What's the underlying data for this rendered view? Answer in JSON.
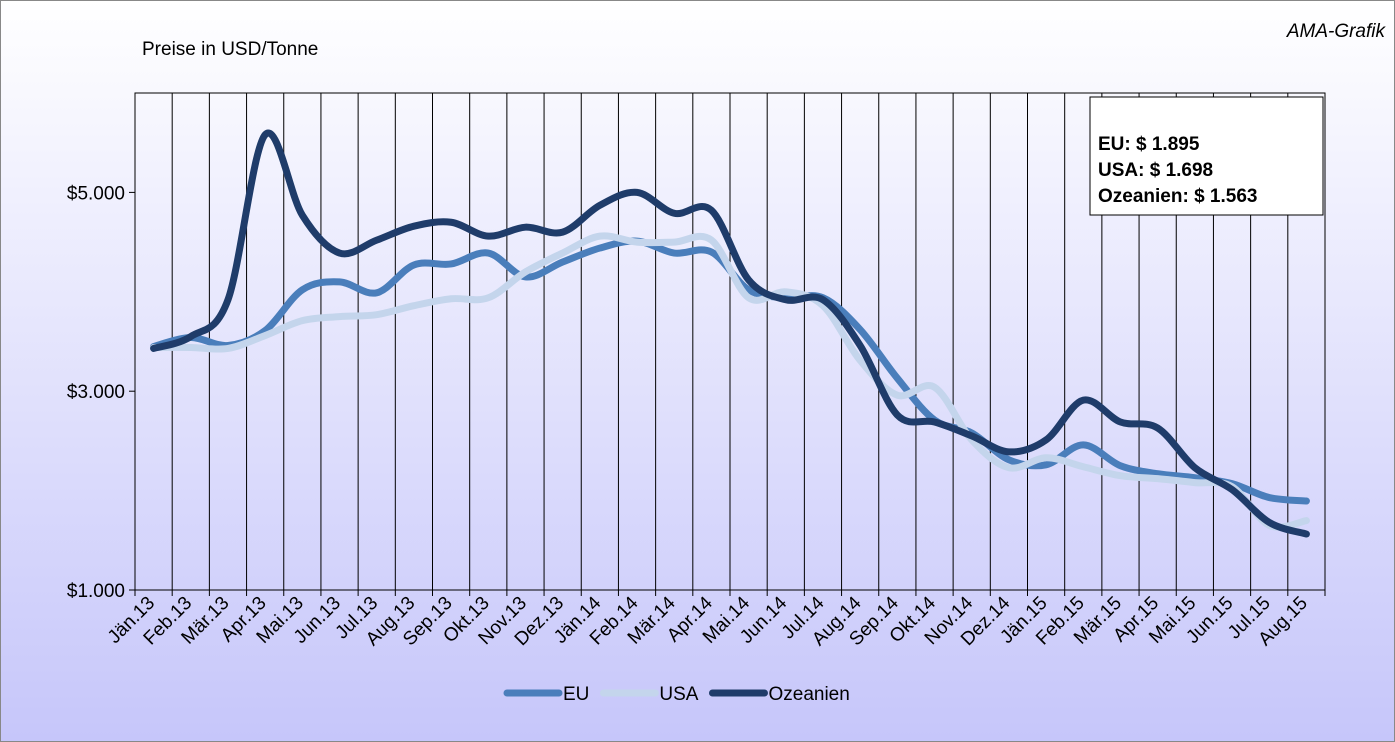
{
  "chart_data": {
    "type": "line",
    "title": "Preise in USD/Tonne",
    "source": "AMA-Grafik",
    "annotations": [
      "EU: $ 1.895",
      "USA: $ 1.698",
      "Ozeanien: $ 1.563"
    ],
    "categories": [
      "Jän.13",
      "Feb.13",
      "Mär.13",
      "Apr.13",
      "Mai.13",
      "Jun.13",
      "Jul.13",
      "Aug.13",
      "Sep.13",
      "Okt.13",
      "Nov.13",
      "Dez.13",
      "Jän.14",
      "Feb.14",
      "Mär.14",
      "Apr.14",
      "Mai.14",
      "Jun.14",
      "Jul.14",
      "Aug.14",
      "Sep.14",
      "Okt.14",
      "Nov.14",
      "Dez.14",
      "Jän.15",
      "Feb.15",
      "Mär.15",
      "Apr.15",
      "Mai.15",
      "Jun.15",
      "Jul.15",
      "Aug.15"
    ],
    "series": [
      {
        "name": "EU",
        "color": "#4a7ebb",
        "values": [
          3450,
          3540,
          3460,
          3610,
          4020,
          4100,
          3990,
          4270,
          4280,
          4390,
          4150,
          4300,
          4440,
          4510,
          4390,
          4400,
          4020,
          3940,
          3940,
          3620,
          3130,
          2710,
          2580,
          2310,
          2260,
          2460,
          2250,
          2170,
          2130,
          2070,
          1930,
          1895
        ]
      },
      {
        "name": "USA",
        "color": "#c4d5ec",
        "values": [
          3440,
          3440,
          3430,
          3560,
          3710,
          3750,
          3770,
          3860,
          3930,
          3940,
          4200,
          4390,
          4560,
          4500,
          4500,
          4520,
          3940,
          4000,
          3860,
          3310,
          2960,
          3040,
          2510,
          2230,
          2330,
          2240,
          2150,
          2120,
          2080,
          2040,
          1650,
          1698
        ]
      },
      {
        "name": "Ozeanien",
        "color": "#1f3c6a",
        "values": [
          3430,
          3550,
          3920,
          5580,
          4770,
          4390,
          4520,
          4660,
          4700,
          4560,
          4650,
          4600,
          4870,
          5000,
          4790,
          4820,
          4120,
          3920,
          3920,
          3460,
          2760,
          2690,
          2550,
          2390,
          2510,
          2910,
          2690,
          2630,
          2230,
          2010,
          1680,
          1563
        ]
      }
    ],
    "ylim": [
      1000,
      6000
    ],
    "yticks": [
      {
        "value": 1000,
        "label": "$1.000"
      },
      {
        "value": 3000,
        "label": "$3.000"
      },
      {
        "value": 5000,
        "label": "$5.000"
      }
    ],
    "grid": true,
    "legend": "bottom"
  }
}
